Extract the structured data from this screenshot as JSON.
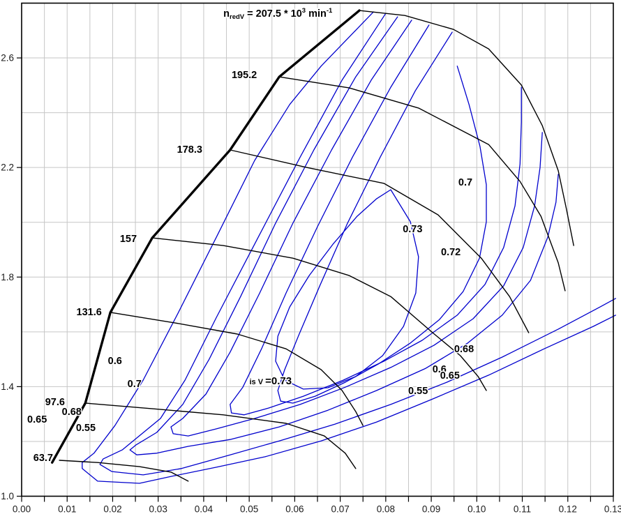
{
  "chart_data": {
    "type": "line",
    "title": {
      "parts": [
        {
          "t": "n",
          "off": "none"
        },
        {
          "t": "redV",
          "off": "sub"
        },
        {
          "t": " = 207.5 * 10",
          "off": "none"
        },
        {
          "t": "3",
          "off": "sup"
        },
        {
          "t": " min",
          "off": "none"
        },
        {
          "t": "-1",
          "off": "sup"
        }
      ],
      "plain": "n_redV = 207.5 * 10^3 min^-1",
      "x": 0.0563,
      "y": 2.776
    },
    "x_axis": {
      "min": 0,
      "max": 0.13,
      "major_step": 0.01,
      "minor_step": 0.005,
      "tick_labels": [
        "0.00",
        "0.01",
        "0.02",
        "0.03",
        "0.04",
        "0.05",
        "0.06",
        "0.07",
        "0.08",
        "0.09",
        "0.10",
        "0.11",
        "0.12",
        "0.13"
      ]
    },
    "y_axis": {
      "min": 1.0,
      "max": 2.8,
      "grid_step": 0.2,
      "tick_labels": [
        "1.0",
        "1.4",
        "1.8",
        "2.2",
        "2.6"
      ],
      "tick_values": [
        1.0,
        1.4,
        1.8,
        2.2,
        2.6
      ]
    },
    "grid": true,
    "colors": {
      "speed_line": "#000000",
      "surge_line": "#000000",
      "efficiency_contour": "#0000cd",
      "grid_line": "#c6c6c6",
      "axis_frame": "#000000",
      "tick_label": "#1a1a1a",
      "curve_label": "#000000",
      "background": "#ffffff"
    },
    "surge_line": {
      "name": "surge-limit",
      "points": [
        [
          0.0067,
          1.123
        ],
        [
          0.014,
          1.34
        ],
        [
          0.0195,
          1.671
        ],
        [
          0.0287,
          1.943
        ],
        [
          0.0458,
          2.264
        ],
        [
          0.0566,
          2.531
        ],
        [
          0.0742,
          2.773
        ]
      ]
    },
    "speed_lines": [
      {
        "value": "63.7",
        "points": [
          [
            0.0083,
            1.131
          ],
          [
            0.0167,
            1.123
          ],
          [
            0.0259,
            1.108
          ],
          [
            0.0328,
            1.088
          ],
          [
            0.0366,
            1.055
          ]
        ]
      },
      {
        "value": "97.6",
        "points": [
          [
            0.014,
            1.34
          ],
          [
            0.029,
            1.319
          ],
          [
            0.0443,
            1.297
          ],
          [
            0.0581,
            1.266
          ],
          [
            0.0665,
            1.22
          ],
          [
            0.0711,
            1.157
          ],
          [
            0.0734,
            1.101
          ]
        ]
      },
      {
        "value": "131.6",
        "points": [
          [
            0.0195,
            1.671
          ],
          [
            0.0336,
            1.633
          ],
          [
            0.0474,
            1.592
          ],
          [
            0.0581,
            1.538
          ],
          [
            0.0658,
            1.462
          ],
          [
            0.0704,
            1.386
          ],
          [
            0.0734,
            1.309
          ],
          [
            0.075,
            1.258
          ]
        ]
      },
      {
        "value": "157",
        "points": [
          [
            0.0287,
            1.943
          ],
          [
            0.0443,
            1.915
          ],
          [
            0.0596,
            1.869
          ],
          [
            0.0719,
            1.806
          ],
          [
            0.0811,
            1.729
          ],
          [
            0.0903,
            1.597
          ],
          [
            0.0964,
            1.513
          ],
          [
            0.1003,
            1.437
          ],
          [
            0.1021,
            1.386
          ]
        ]
      },
      {
        "value": "178.3",
        "points": [
          [
            0.0458,
            2.264
          ],
          [
            0.0627,
            2.2
          ],
          [
            0.0796,
            2.142
          ],
          [
            0.0915,
            2.027
          ],
          [
            0.101,
            1.869
          ],
          [
            0.1072,
            1.729
          ],
          [
            0.1114,
            1.597
          ]
        ]
      },
      {
        "value": "195.2",
        "points": [
          [
            0.0566,
            2.531
          ],
          [
            0.0719,
            2.491
          ],
          [
            0.0872,
            2.417
          ],
          [
            0.1026,
            2.284
          ],
          [
            0.1095,
            2.149
          ],
          [
            0.1141,
            2.022
          ],
          [
            0.1179,
            1.852
          ],
          [
            0.1194,
            1.75
          ]
        ]
      },
      {
        "value": "207.5",
        "points": [
          [
            0.0742,
            2.773
          ],
          [
            0.0842,
            2.755
          ],
          [
            0.0949,
            2.704
          ],
          [
            0.1026,
            2.633
          ],
          [
            0.1098,
            2.501
          ],
          [
            0.1144,
            2.353
          ],
          [
            0.1179,
            2.188
          ],
          [
            0.1197,
            2.048
          ],
          [
            0.1213,
            1.915
          ]
        ]
      }
    ],
    "efficiency_contours": [
      {
        "value": "0.55",
        "closed": false,
        "points": [
          [
            0.0773,
            2.768
          ],
          [
            0.0658,
            2.57
          ],
          [
            0.0589,
            2.43
          ],
          [
            0.0512,
            2.226
          ],
          [
            0.0428,
            1.946
          ],
          [
            0.0343,
            1.666
          ],
          [
            0.0267,
            1.424
          ],
          [
            0.0205,
            1.258
          ],
          [
            0.0159,
            1.157
          ],
          [
            0.0133,
            1.123
          ],
          [
            0.0133,
            1.101
          ],
          [
            0.0167,
            1.055
          ],
          [
            0.0259,
            1.047
          ],
          [
            0.0331,
            1.073
          ],
          [
            0.0428,
            1.106
          ],
          [
            0.0535,
            1.144
          ],
          [
            0.0658,
            1.202
          ],
          [
            0.078,
            1.271
          ],
          [
            0.0903,
            1.355
          ],
          [
            0.1026,
            1.442
          ],
          [
            0.1148,
            1.538
          ],
          [
            0.1256,
            1.62
          ],
          [
            0.1305,
            1.661
          ]
        ]
      },
      {
        "value": "0.6",
        "closed": false,
        "points": [
          [
            0.0799,
            2.76
          ],
          [
            0.0704,
            2.519
          ],
          [
            0.0612,
            2.238
          ],
          [
            0.052,
            1.946
          ],
          [
            0.0428,
            1.653
          ],
          [
            0.0359,
            1.424
          ],
          [
            0.0305,
            1.284
          ],
          [
            0.0221,
            1.169
          ],
          [
            0.0179,
            1.136
          ],
          [
            0.0172,
            1.116
          ],
          [
            0.0198,
            1.09
          ],
          [
            0.0267,
            1.078
          ],
          [
            0.0351,
            1.101
          ],
          [
            0.0458,
            1.151
          ],
          [
            0.0566,
            1.202
          ],
          [
            0.0688,
            1.263
          ],
          [
            0.0811,
            1.335
          ],
          [
            0.0934,
            1.416
          ],
          [
            0.1056,
            1.508
          ],
          [
            0.1179,
            1.61
          ],
          [
            0.1271,
            1.691
          ],
          [
            0.1305,
            1.722
          ]
        ]
      },
      {
        "value": "0.65",
        "closed": false,
        "points": [
          [
            0.0826,
            2.75
          ],
          [
            0.0734,
            2.531
          ],
          [
            0.0642,
            2.264
          ],
          [
            0.0558,
            1.997
          ],
          [
            0.0481,
            1.729
          ],
          [
            0.0412,
            1.5
          ],
          [
            0.0354,
            1.335
          ],
          [
            0.0297,
            1.233
          ],
          [
            0.0251,
            1.187
          ],
          [
            0.0238,
            1.169
          ],
          [
            0.0253,
            1.151
          ],
          [
            0.0297,
            1.157
          ],
          [
            0.0366,
            1.182
          ],
          [
            0.0458,
            1.207
          ],
          [
            0.0566,
            1.253
          ],
          [
            0.0673,
            1.314
          ],
          [
            0.078,
            1.386
          ],
          [
            0.0888,
            1.467
          ],
          [
            0.098,
            1.559
          ],
          [
            0.1056,
            1.661
          ],
          [
            0.1118,
            1.788
          ],
          [
            0.1156,
            1.946
          ],
          [
            0.1174,
            2.073
          ],
          [
            0.1179,
            2.175
          ]
        ]
      },
      {
        "value": "0.68",
        "closed": false,
        "points": [
          [
            0.0857,
            2.738
          ],
          [
            0.0768,
            2.519
          ],
          [
            0.0681,
            2.264
          ],
          [
            0.0596,
            1.997
          ],
          [
            0.0523,
            1.742
          ],
          [
            0.0458,
            1.526
          ],
          [
            0.0405,
            1.373
          ],
          [
            0.0354,
            1.284
          ],
          [
            0.0328,
            1.253
          ],
          [
            0.0333,
            1.228
          ],
          [
            0.0366,
            1.22
          ],
          [
            0.0428,
            1.246
          ],
          [
            0.0512,
            1.284
          ],
          [
            0.0612,
            1.335
          ],
          [
            0.0711,
            1.398
          ],
          [
            0.0811,
            1.47
          ],
          [
            0.0906,
            1.551
          ],
          [
            0.0992,
            1.648
          ],
          [
            0.1059,
            1.768
          ],
          [
            0.1102,
            1.908
          ],
          [
            0.1127,
            2.06
          ],
          [
            0.1139,
            2.2
          ],
          [
            0.1144,
            2.328
          ]
        ]
      },
      {
        "value": "0.7",
        "closed": false,
        "points": [
          [
            0.0895,
            2.72
          ],
          [
            0.0811,
            2.493
          ],
          [
            0.0727,
            2.238
          ],
          [
            0.065,
            1.984
          ],
          [
            0.0581,
            1.742
          ],
          [
            0.0527,
            1.538
          ],
          [
            0.0486,
            1.398
          ],
          [
            0.0458,
            1.335
          ],
          [
            0.0461,
            1.304
          ],
          [
            0.0489,
            1.297
          ],
          [
            0.0543,
            1.322
          ],
          [
            0.0619,
            1.365
          ],
          [
            0.0707,
            1.424
          ],
          [
            0.0796,
            1.493
          ],
          [
            0.088,
            1.569
          ],
          [
            0.0957,
            1.661
          ],
          [
            0.1018,
            1.773
          ],
          [
            0.1059,
            1.908
          ],
          [
            0.1084,
            2.06
          ],
          [
            0.1095,
            2.213
          ],
          [
            0.1098,
            2.366
          ],
          [
            0.1098,
            2.493
          ]
        ]
      },
      {
        "value": "0.72",
        "closed": false,
        "points": [
          [
            0.0946,
            2.694
          ],
          [
            0.0865,
            2.48
          ],
          [
            0.0788,
            2.238
          ],
          [
            0.0716,
            1.997
          ],
          [
            0.0655,
            1.768
          ],
          [
            0.0609,
            1.589
          ],
          [
            0.0578,
            1.462
          ],
          [
            0.0563,
            1.386
          ],
          [
            0.0569,
            1.347
          ],
          [
            0.0596,
            1.34
          ],
          [
            0.0645,
            1.365
          ],
          [
            0.0711,
            1.416
          ],
          [
            0.0783,
            1.482
          ],
          [
            0.0854,
            1.559
          ],
          [
            0.0918,
            1.645
          ],
          [
            0.097,
            1.747
          ],
          [
            0.1006,
            1.869
          ],
          [
            0.1021,
            2.002
          ],
          [
            0.1021,
            2.137
          ],
          [
            0.1007,
            2.277
          ],
          [
            0.0983,
            2.43
          ],
          [
            0.0957,
            2.57
          ]
        ]
      },
      {
        "value": "0.73",
        "closed": true,
        "points": [
          [
            0.0811,
            2.119
          ],
          [
            0.0854,
            2.002
          ],
          [
            0.0872,
            1.874
          ],
          [
            0.0866,
            1.742
          ],
          [
            0.0839,
            1.62
          ],
          [
            0.0793,
            1.513
          ],
          [
            0.0734,
            1.437
          ],
          [
            0.0673,
            1.396
          ],
          [
            0.0619,
            1.391
          ],
          [
            0.0578,
            1.424
          ],
          [
            0.0558,
            1.493
          ],
          [
            0.0563,
            1.584
          ],
          [
            0.0589,
            1.691
          ],
          [
            0.0632,
            1.806
          ],
          [
            0.0684,
            1.92
          ],
          [
            0.0737,
            2.022
          ],
          [
            0.078,
            2.086
          ],
          [
            0.0811,
            2.119
          ]
        ]
      }
    ],
    "curve_labels": [
      {
        "text": "195.2",
        "x": 0.0517,
        "y": 2.539,
        "anchor": "end",
        "kind": "speed"
      },
      {
        "text": "178.3",
        "x": 0.0397,
        "y": 2.266,
        "anchor": "end",
        "kind": "speed"
      },
      {
        "text": "157",
        "x": 0.0253,
        "y": 1.941,
        "anchor": "end",
        "kind": "speed"
      },
      {
        "text": "131.6",
        "x": 0.0176,
        "y": 1.673,
        "anchor": "end",
        "kind": "speed"
      },
      {
        "text": "97.6",
        "x": 0.0095,
        "y": 1.345,
        "anchor": "end",
        "kind": "speed"
      },
      {
        "text": "63.7",
        "x": 0.0069,
        "y": 1.141,
        "anchor": "end",
        "kind": "speed"
      },
      {
        "text": "0.6",
        "x": 0.0205,
        "y": 1.495,
        "anchor": "middle",
        "kind": "efficiency"
      },
      {
        "text": "0.7",
        "x": 0.0248,
        "y": 1.411,
        "anchor": "middle",
        "kind": "efficiency"
      },
      {
        "text": "0.65",
        "x": 0.0034,
        "y": 1.281,
        "anchor": "middle",
        "kind": "efficiency"
      },
      {
        "text": "0.68",
        "x": 0.011,
        "y": 1.309,
        "anchor": "middle",
        "kind": "efficiency"
      },
      {
        "text": "0.55",
        "x": 0.0141,
        "y": 1.251,
        "anchor": "middle",
        "kind": "efficiency"
      },
      {
        "text": "0.7",
        "x": 0.0975,
        "y": 2.147,
        "anchor": "middle",
        "kind": "efficiency"
      },
      {
        "text": "0.73",
        "x": 0.0859,
        "y": 1.976,
        "anchor": "middle",
        "kind": "efficiency"
      },
      {
        "text": "0.72",
        "x": 0.0943,
        "y": 1.892,
        "anchor": "middle",
        "kind": "efficiency"
      },
      {
        "text": "0.68",
        "x": 0.0972,
        "y": 1.538,
        "anchor": "middle",
        "kind": "efficiency"
      },
      {
        "text": "0.6",
        "x": 0.0918,
        "y": 1.465,
        "anchor": "middle",
        "kind": "efficiency"
      },
      {
        "text": "0.65",
        "x": 0.0941,
        "y": 1.442,
        "anchor": "middle",
        "kind": "efficiency"
      },
      {
        "text": "0.55",
        "x": 0.0871,
        "y": 1.386,
        "anchor": "middle",
        "kind": "efficiency"
      }
    ],
    "iso_efficiency_label": {
      "prefix": "is V ",
      "value_text": "=0.73",
      "x": 0.0547,
      "y": 1.421
    }
  },
  "layout_note": ""
}
